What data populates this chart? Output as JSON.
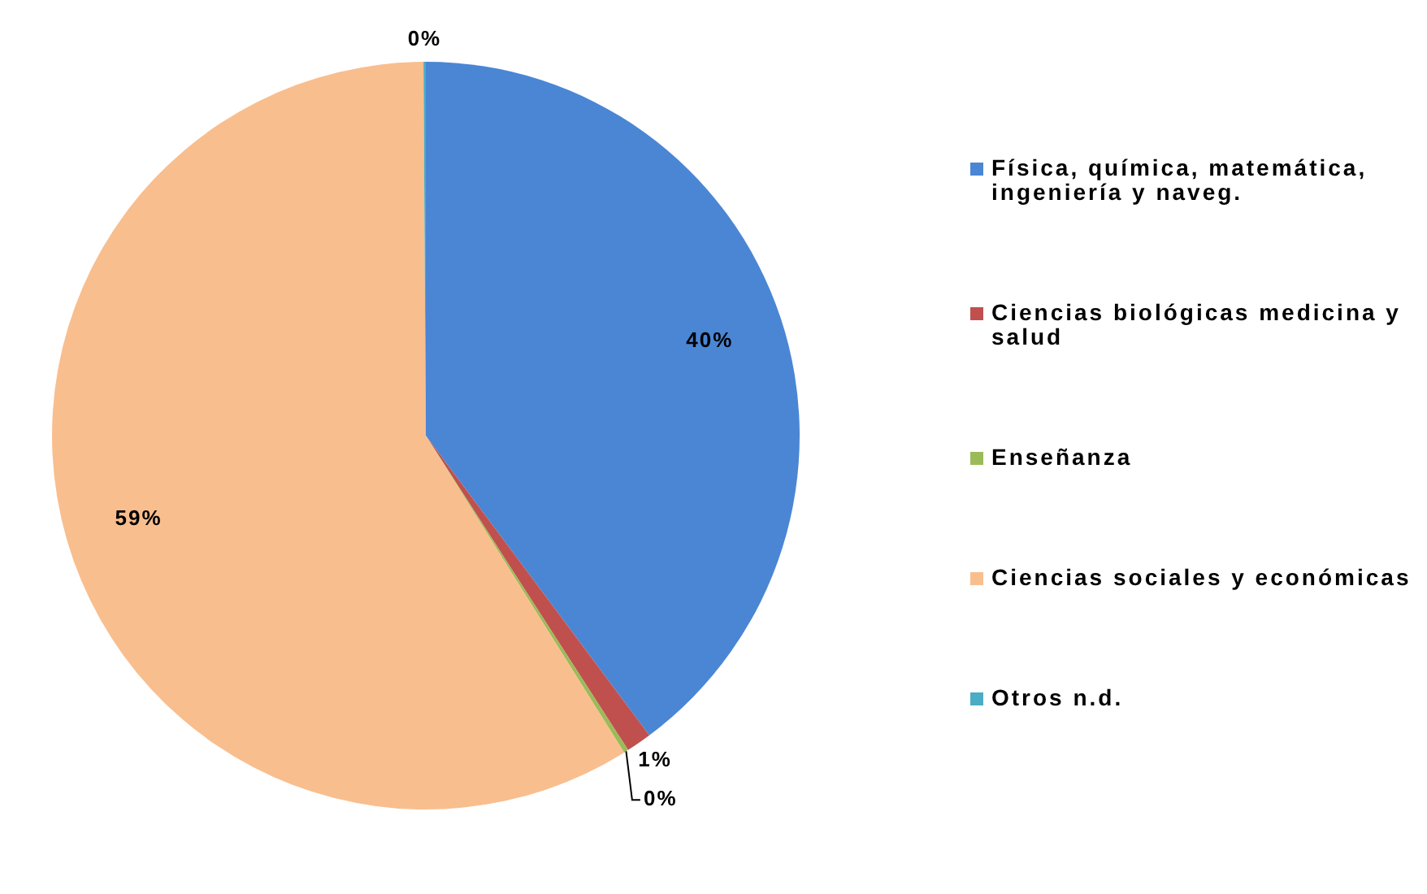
{
  "chart_data": {
    "type": "pie",
    "categories": [
      "Física, química, matemática, ingeniería y naveg.",
      "Ciencias biológicas medicina y salud",
      "Enseñanza",
      "Ciencias sociales y económicas",
      "Otros n.d."
    ],
    "values": [
      39.8,
      1.1,
      0.2,
      58.8,
      0.1
    ],
    "colors": [
      "#4a86d4",
      "#c0504d",
      "#9bbb59",
      "#f9be8e",
      "#4bacc6"
    ],
    "value_labels": [
      "40%",
      "1%",
      "0%",
      "59%",
      "0%"
    ],
    "legend": "right"
  }
}
